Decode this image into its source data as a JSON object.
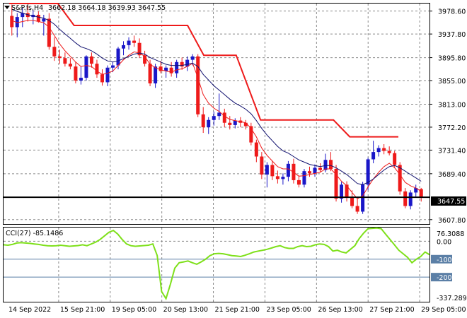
{
  "header": {
    "symbol_timeframe": "S&P.fs,H4",
    "ohlc": "3662.18 3664.18 3639.93 3647.55"
  },
  "colors": {
    "bull": "#1a17c8",
    "bear": "#ee1a1a",
    "fast_ma": "#ee1a1a",
    "slow_ma": "#10106e",
    "resistance": "#ee1a1a",
    "support": "#000000",
    "cci": "#7ee01a",
    "cci_levels": "#5b7fa6",
    "grid": "#8a8a8a"
  },
  "chart_data": [
    {
      "type": "candlestick",
      "title": "S&P.fs,H4",
      "x_labels": [
        "14 Sep 2022",
        "15 Sep 21:00",
        "19 Sep 05:00",
        "20 Sep 13:00",
        "21 Sep 21:00",
        "23 Sep 05:00",
        "26 Sep 13:00",
        "27 Sep 21:00",
        "29 Sep 05:00"
      ],
      "y_ticks": [
        "3978.60",
        "3937.80",
        "3895.80",
        "3855.00",
        "3813.00",
        "3772.20",
        "3731.40",
        "3689.40",
        "3647.55",
        "3607.80"
      ],
      "ylim": [
        3600,
        3992
      ],
      "current_price": "3647.55",
      "support_level": 3647.55,
      "candles": [
        {
          "o": 3970,
          "h": 3990,
          "l": 3935,
          "c": 3950
        },
        {
          "o": 3950,
          "h": 3975,
          "l": 3932,
          "c": 3968
        },
        {
          "o": 3968,
          "h": 3985,
          "l": 3950,
          "c": 3975
        },
        {
          "o": 3975,
          "h": 3988,
          "l": 3960,
          "c": 3968
        },
        {
          "o": 3968,
          "h": 3980,
          "l": 3955,
          "c": 3972
        },
        {
          "o": 3972,
          "h": 3978,
          "l": 3958,
          "c": 3960
        },
        {
          "o": 3960,
          "h": 3972,
          "l": 3935,
          "c": 3965
        },
        {
          "o": 3965,
          "h": 3975,
          "l": 3910,
          "c": 3915
        },
        {
          "o": 3915,
          "h": 3932,
          "l": 3890,
          "c": 3898
        },
        {
          "o": 3898,
          "h": 3910,
          "l": 3885,
          "c": 3895
        },
        {
          "o": 3895,
          "h": 3905,
          "l": 3880,
          "c": 3885
        },
        {
          "o": 3885,
          "h": 3895,
          "l": 3875,
          "c": 3880
        },
        {
          "o": 3880,
          "h": 3888,
          "l": 3850,
          "c": 3855
        },
        {
          "o": 3855,
          "h": 3880,
          "l": 3848,
          "c": 3860
        },
        {
          "o": 3860,
          "h": 3900,
          "l": 3855,
          "c": 3898
        },
        {
          "o": 3898,
          "h": 3905,
          "l": 3878,
          "c": 3885
        },
        {
          "o": 3885,
          "h": 3892,
          "l": 3860,
          "c": 3866
        },
        {
          "o": 3866,
          "h": 3875,
          "l": 3846,
          "c": 3852
        },
        {
          "o": 3852,
          "h": 3882,
          "l": 3845,
          "c": 3878
        },
        {
          "o": 3878,
          "h": 3888,
          "l": 3870,
          "c": 3882
        },
        {
          "o": 3882,
          "h": 3915,
          "l": 3875,
          "c": 3912
        },
        {
          "o": 3912,
          "h": 3925,
          "l": 3900,
          "c": 3918
        },
        {
          "o": 3918,
          "h": 3932,
          "l": 3910,
          "c": 3926
        },
        {
          "o": 3926,
          "h": 3935,
          "l": 3915,
          "c": 3922
        },
        {
          "o": 3922,
          "h": 3930,
          "l": 3895,
          "c": 3900
        },
        {
          "o": 3900,
          "h": 3908,
          "l": 3880,
          "c": 3885
        },
        {
          "o": 3885,
          "h": 3892,
          "l": 3845,
          "c": 3850
        },
        {
          "o": 3850,
          "h": 3885,
          "l": 3842,
          "c": 3880
        },
        {
          "o": 3880,
          "h": 3890,
          "l": 3868,
          "c": 3872
        },
        {
          "o": 3872,
          "h": 3882,
          "l": 3860,
          "c": 3878
        },
        {
          "o": 3878,
          "h": 3888,
          "l": 3862,
          "c": 3868
        },
        {
          "o": 3868,
          "h": 3892,
          "l": 3860,
          "c": 3888
        },
        {
          "o": 3888,
          "h": 3896,
          "l": 3874,
          "c": 3880
        },
        {
          "o": 3880,
          "h": 3898,
          "l": 3872,
          "c": 3892
        },
        {
          "o": 3892,
          "h": 3902,
          "l": 3882,
          "c": 3898
        },
        {
          "o": 3898,
          "h": 3902,
          "l": 3790,
          "c": 3795
        },
        {
          "o": 3795,
          "h": 3808,
          "l": 3762,
          "c": 3772
        },
        {
          "o": 3772,
          "h": 3790,
          "l": 3760,
          "c": 3785
        },
        {
          "o": 3785,
          "h": 3800,
          "l": 3775,
          "c": 3792
        },
        {
          "o": 3792,
          "h": 3832,
          "l": 3785,
          "c": 3798
        },
        {
          "o": 3798,
          "h": 3805,
          "l": 3772,
          "c": 3780
        },
        {
          "o": 3780,
          "h": 3792,
          "l": 3768,
          "c": 3776
        },
        {
          "o": 3776,
          "h": 3788,
          "l": 3770,
          "c": 3784
        },
        {
          "o": 3784,
          "h": 3790,
          "l": 3772,
          "c": 3780
        },
        {
          "o": 3780,
          "h": 3785,
          "l": 3768,
          "c": 3774
        },
        {
          "o": 3774,
          "h": 3780,
          "l": 3740,
          "c": 3745
        },
        {
          "o": 3745,
          "h": 3750,
          "l": 3710,
          "c": 3720
        },
        {
          "o": 3720,
          "h": 3728,
          "l": 3680,
          "c": 3688
        },
        {
          "o": 3688,
          "h": 3710,
          "l": 3665,
          "c": 3705
        },
        {
          "o": 3705,
          "h": 3712,
          "l": 3678,
          "c": 3685
        },
        {
          "o": 3685,
          "h": 3695,
          "l": 3672,
          "c": 3680
        },
        {
          "o": 3680,
          "h": 3690,
          "l": 3670,
          "c": 3684
        },
        {
          "o": 3684,
          "h": 3712,
          "l": 3676,
          "c": 3707
        },
        {
          "o": 3707,
          "h": 3716,
          "l": 3672,
          "c": 3678
        },
        {
          "o": 3678,
          "h": 3686,
          "l": 3665,
          "c": 3670
        },
        {
          "o": 3670,
          "h": 3698,
          "l": 3665,
          "c": 3694
        },
        {
          "o": 3694,
          "h": 3702,
          "l": 3684,
          "c": 3690
        },
        {
          "o": 3690,
          "h": 3706,
          "l": 3684,
          "c": 3700
        },
        {
          "o": 3700,
          "h": 3708,
          "l": 3692,
          "c": 3696
        },
        {
          "o": 3696,
          "h": 3725,
          "l": 3692,
          "c": 3714
        },
        {
          "o": 3714,
          "h": 3728,
          "l": 3694,
          "c": 3698
        },
        {
          "o": 3698,
          "h": 3705,
          "l": 3640,
          "c": 3645
        },
        {
          "o": 3645,
          "h": 3675,
          "l": 3638,
          "c": 3670
        },
        {
          "o": 3670,
          "h": 3676,
          "l": 3640,
          "c": 3648
        },
        {
          "o": 3648,
          "h": 3660,
          "l": 3628,
          "c": 3632
        },
        {
          "o": 3632,
          "h": 3645,
          "l": 3618,
          "c": 3622
        },
        {
          "o": 3622,
          "h": 3675,
          "l": 3618,
          "c": 3670
        },
        {
          "o": 3670,
          "h": 3718,
          "l": 3660,
          "c": 3715
        },
        {
          "o": 3715,
          "h": 3748,
          "l": 3708,
          "c": 3728
        },
        {
          "o": 3728,
          "h": 3740,
          "l": 3720,
          "c": 3735
        },
        {
          "o": 3735,
          "h": 3742,
          "l": 3724,
          "c": 3730
        },
        {
          "o": 3730,
          "h": 3738,
          "l": 3722,
          "c": 3726
        },
        {
          "o": 3726,
          "h": 3730,
          "l": 3700,
          "c": 3705
        },
        {
          "o": 3705,
          "h": 3710,
          "l": 3652,
          "c": 3658
        },
        {
          "o": 3658,
          "h": 3664,
          "l": 3628,
          "c": 3632
        },
        {
          "o": 3632,
          "h": 3660,
          "l": 3626,
          "c": 3656
        },
        {
          "o": 3656,
          "h": 3670,
          "l": 3648,
          "c": 3664
        },
        {
          "o": 3662.18,
          "h": 3664.18,
          "l": 3639.93,
          "c": 3647.55
        }
      ],
      "fast_ma": [
        3962,
        3958,
        3960,
        3962,
        3962,
        3960,
        3958,
        3950,
        3935,
        3920,
        3908,
        3898,
        3888,
        3880,
        3882,
        3880,
        3872,
        3866,
        3868,
        3872,
        3882,
        3892,
        3900,
        3906,
        3904,
        3898,
        3884,
        3878,
        3874,
        3872,
        3870,
        3874,
        3876,
        3880,
        3886,
        3860,
        3830,
        3815,
        3806,
        3800,
        3792,
        3786,
        3784,
        3782,
        3780,
        3770,
        3755,
        3735,
        3722,
        3712,
        3702,
        3698,
        3698,
        3692,
        3685,
        3686,
        3688,
        3690,
        3692,
        3698,
        3698,
        3688,
        3676,
        3668,
        3656,
        3645,
        3650,
        3666,
        3680,
        3692,
        3702,
        3708,
        3700,
        3688,
        3674,
        3668,
        3664,
        3658
      ],
      "slow_ma": [
        3982,
        3978,
        3975,
        3972,
        3970,
        3968,
        3966,
        3962,
        3955,
        3946,
        3938,
        3930,
        3922,
        3915,
        3912,
        3908,
        3902,
        3895,
        3890,
        3888,
        3890,
        3894,
        3898,
        3902,
        3904,
        3902,
        3896,
        3892,
        3888,
        3884,
        3882,
        3882,
        3882,
        3884,
        3886,
        3880,
        3866,
        3856,
        3846,
        3838,
        3830,
        3822,
        3815,
        3810,
        3804,
        3796,
        3784,
        3770,
        3758,
        3748,
        3738,
        3730,
        3726,
        3720,
        3714,
        3710,
        3706,
        3704,
        3702,
        3704,
        3704,
        3700,
        3694,
        3688,
        3680,
        3672,
        3670,
        3674,
        3680,
        3688,
        3696,
        3702,
        3704,
        3700,
        3694,
        3688,
        3682,
        3676
      ],
      "resistance": [
        {
          "i": 0,
          "v": 3992
        },
        {
          "i": 12,
          "v": 3992
        },
        {
          "i": 16,
          "v": 3953
        },
        {
          "i": 44,
          "v": 3953
        },
        {
          "i": 48,
          "v": 3900
        },
        {
          "i": 56,
          "v": 3900
        },
        {
          "i": 62,
          "v": 3785
        },
        {
          "i": 80,
          "v": 3785
        },
        {
          "i": 84,
          "v": 3755
        },
        {
          "i": 96,
          "v": 3755
        }
      ]
    },
    {
      "type": "line",
      "title": "CCI(27) -85.1486",
      "y_ticks": [
        "76.3088",
        "0.00",
        "-100",
        "-200",
        "-337.2895"
      ],
      "ylim": [
        -337.2895,
        76.3088
      ],
      "levels": [
        0,
        -100,
        -200
      ],
      "values": [
        -20,
        -22,
        -18,
        -10,
        -8,
        -10,
        -12,
        -15,
        -18,
        -22,
        -25,
        -26,
        -25,
        -22,
        -25,
        -28,
        -26,
        -24,
        -20,
        -25,
        -15,
        -5,
        10,
        30,
        50,
        60,
        40,
        10,
        -15,
        -25,
        -28,
        -26,
        -24,
        -22,
        -15,
        -80,
        -280,
        -320,
        -240,
        -150,
        -120,
        -115,
        -110,
        -120,
        -128,
        -115,
        -100,
        -80,
        -70,
        -68,
        -70,
        -75,
        -80,
        -82,
        -85,
        -78,
        -70,
        -60,
        -55,
        -50,
        -45,
        -38,
        -30,
        -25,
        -35,
        -40,
        -40,
        -30,
        -25,
        -30,
        -28,
        -20,
        -15,
        -18,
        -30,
        -55,
        -50,
        -60,
        -65,
        -45,
        -25,
        15,
        45,
        70,
        72,
        74,
        70,
        40,
        10,
        -20,
        -50,
        -70,
        -90,
        -120,
        -100,
        -85,
        -60,
        -75
      ]
    }
  ]
}
